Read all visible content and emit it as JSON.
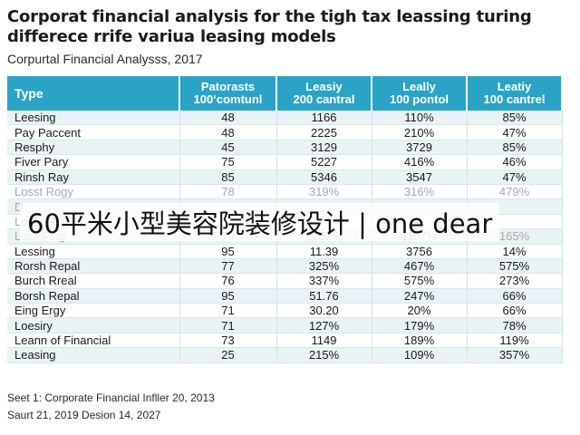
{
  "document": {
    "title": "Corporat financial analysis for the tigh tax leassing turing differece rrife variua leasing models",
    "subtitle": "Corpurtal Financial Analysss, 2017"
  },
  "table": {
    "headers": [
      [
        "Type",
        ""
      ],
      [
        "Patorasts",
        "100ʻcomtunl"
      ],
      [
        "Leasiy",
        "200 cantral"
      ],
      [
        "Leally",
        "100 pontol"
      ],
      [
        "Leatiy",
        "100 cantrel"
      ]
    ],
    "rows": [
      [
        "Leesing",
        "48",
        "1166",
        "110%",
        "85%"
      ],
      [
        "Pay Paccent",
        "48",
        "2225",
        "210%",
        "47%"
      ],
      [
        "Resphy",
        "45",
        "3129",
        "3729",
        "85%"
      ],
      [
        "Fiver Pary",
        "75",
        "5227",
        "416%",
        "46%"
      ],
      [
        "Rinsh Ray",
        "85",
        "5346",
        "3547",
        "47%"
      ],
      [
        "Losst Rogy",
        "78",
        "319%",
        "316%",
        "479%"
      ],
      [
        "D",
        "",
        "",
        "",
        ""
      ],
      [
        "Loser Rug",
        "",
        "",
        "",
        ""
      ],
      [
        "LoselFing",
        "70",
        "1102%",
        "1107%",
        "165%"
      ],
      [
        "Lessing",
        "95",
        "11.39",
        "3756",
        "14%"
      ],
      [
        "Rorsh Repal",
        "77",
        "325%",
        "467%",
        "575%"
      ],
      [
        "Burch Rreal",
        "76",
        "337%",
        "575%",
        "273%"
      ],
      [
        "Borsh Repal",
        "95",
        "51.76",
        "247%",
        "66%"
      ],
      [
        "Eing Ergy",
        "71",
        "30.20",
        "20%",
        "66%"
      ],
      [
        "Loesiry",
        "71",
        "127%",
        "179%",
        "78%"
      ],
      [
        "Leann of Financial",
        "73",
        "1149",
        "189%",
        "119%"
      ],
      [
        "Leasing",
        "25",
        "215%",
        "109%",
        "357%"
      ]
    ]
  },
  "notes": {
    "line1": "Seet 1: Corporate Financial Infller 20, 2013",
    "line2": "Saurt 21, 2019 Desion 14, 2027"
  },
  "watermark": "60平米小型美容院装修设计 | one dear",
  "colors": {
    "header_bg": "#2aa3c6",
    "row_alt_bg": "#e9f3f6"
  }
}
